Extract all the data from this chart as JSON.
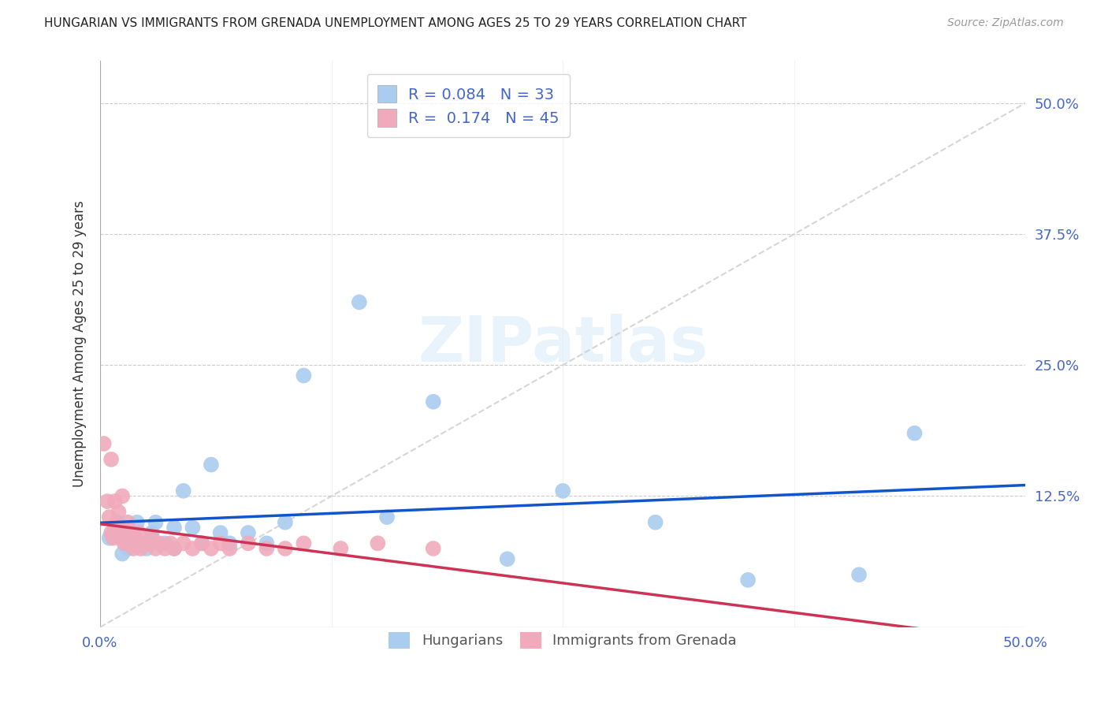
{
  "title": "HUNGARIAN VS IMMIGRANTS FROM GRENADA UNEMPLOYMENT AMONG AGES 25 TO 29 YEARS CORRELATION CHART",
  "source": "Source: ZipAtlas.com",
  "ylabel": "Unemployment Among Ages 25 to 29 years",
  "xlim": [
    0.0,
    0.5
  ],
  "ylim": [
    0.0,
    0.54
  ],
  "ytick_labels": [
    "50.0%",
    "37.5%",
    "25.0%",
    "12.5%",
    ""
  ],
  "yticks": [
    0.5,
    0.375,
    0.25,
    0.125,
    0.0
  ],
  "hungarian_color": "#aaccf0",
  "grenada_color": "#f0aabb",
  "hungarian_line_color": "#1155cc",
  "grenada_line_color": "#cc3355",
  "diagonal_color": "#cccccc",
  "R_hungarian": 0.084,
  "N_hungarian": 33,
  "R_grenada": 0.174,
  "N_grenada": 45,
  "hungarian_x": [
    0.005,
    0.008,
    0.01,
    0.012,
    0.015,
    0.018,
    0.02,
    0.022,
    0.025,
    0.028,
    0.03,
    0.035,
    0.04,
    0.04,
    0.045,
    0.05,
    0.055,
    0.06,
    0.065,
    0.07,
    0.08,
    0.09,
    0.1,
    0.11,
    0.14,
    0.155,
    0.18,
    0.22,
    0.25,
    0.3,
    0.35,
    0.41,
    0.44
  ],
  "hungarian_y": [
    0.085,
    0.09,
    0.095,
    0.07,
    0.075,
    0.08,
    0.1,
    0.08,
    0.075,
    0.09,
    0.1,
    0.08,
    0.095,
    0.075,
    0.13,
    0.095,
    0.08,
    0.155,
    0.09,
    0.08,
    0.09,
    0.08,
    0.1,
    0.24,
    0.31,
    0.105,
    0.215,
    0.065,
    0.13,
    0.1,
    0.045,
    0.05,
    0.185
  ],
  "grenada_x": [
    0.002,
    0.004,
    0.005,
    0.006,
    0.006,
    0.007,
    0.008,
    0.008,
    0.009,
    0.01,
    0.01,
    0.011,
    0.012,
    0.012,
    0.013,
    0.014,
    0.015,
    0.015,
    0.016,
    0.017,
    0.018,
    0.019,
    0.02,
    0.021,
    0.022,
    0.025,
    0.028,
    0.03,
    0.032,
    0.035,
    0.038,
    0.04,
    0.045,
    0.05,
    0.055,
    0.06,
    0.065,
    0.07,
    0.08,
    0.09,
    0.1,
    0.11,
    0.13,
    0.15,
    0.18
  ],
  "grenada_y": [
    0.175,
    0.12,
    0.105,
    0.16,
    0.09,
    0.085,
    0.095,
    0.12,
    0.1,
    0.11,
    0.095,
    0.085,
    0.125,
    0.09,
    0.08,
    0.095,
    0.085,
    0.1,
    0.08,
    0.09,
    0.075,
    0.085,
    0.08,
    0.09,
    0.075,
    0.08,
    0.085,
    0.075,
    0.08,
    0.075,
    0.08,
    0.075,
    0.08,
    0.075,
    0.08,
    0.075,
    0.08,
    0.075,
    0.08,
    0.075,
    0.075,
    0.08,
    0.075,
    0.08,
    0.075
  ],
  "background_color": "#ffffff",
  "grid_color": "#cccccc",
  "axis_label_color": "#4466cc",
  "title_color": "#222222",
  "watermark": "ZIPatlas"
}
